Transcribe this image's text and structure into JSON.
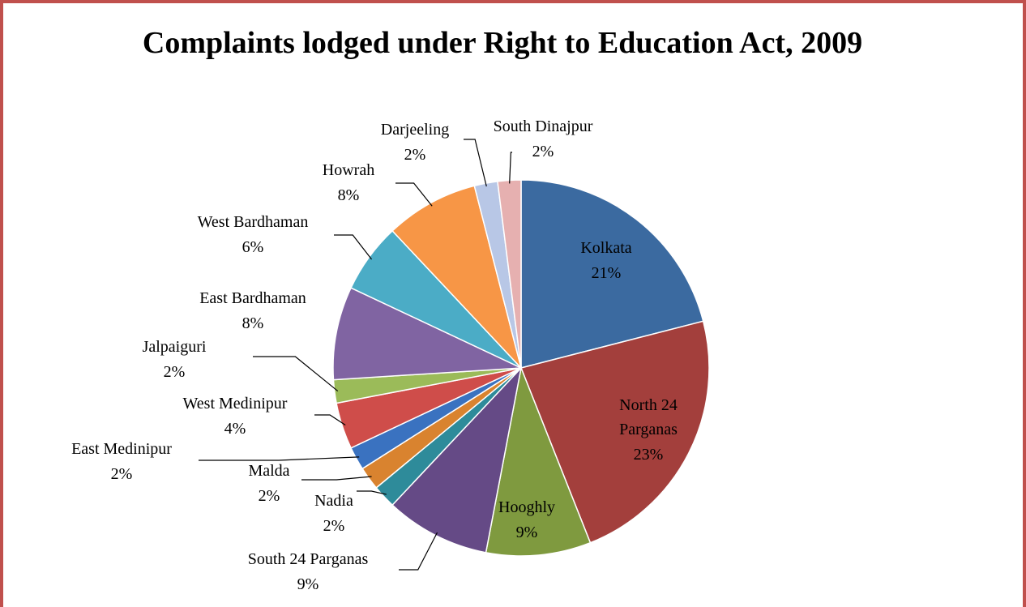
{
  "chart_data": {
    "type": "pie",
    "title": "Complaints lodged under Right to Education Act, 2009",
    "categories": [
      "Kolkata",
      "North 24 Parganas",
      "Hooghly",
      "South 24 Parganas",
      "Nadia",
      "Malda",
      "East Medinipur",
      "West Medinipur",
      "Jalpaiguri",
      "East Bardhaman",
      "West Bardhaman",
      "Howrah",
      "Darjeeling",
      "South Dinajpur"
    ],
    "values": [
      21,
      23,
      9,
      9,
      2,
      2,
      2,
      4,
      2,
      8,
      6,
      8,
      2,
      2
    ],
    "value_labels": [
      "21%",
      "23%",
      "9%",
      "9%",
      "2%",
      "2%",
      "2%",
      "4%",
      "2%",
      "8%",
      "6%",
      "8%",
      "2%",
      "2%"
    ],
    "colors": [
      "#3b6aa0",
      "#a33f3c",
      "#7f9a3f",
      "#654a86",
      "#2e8b9a",
      "#d9832f",
      "#3a72c0",
      "#cf4d4a",
      "#9bbb59",
      "#8064a2",
      "#4bacc6",
      "#f79646",
      "#b8c7e6",
      "#e6b0b0"
    ]
  }
}
